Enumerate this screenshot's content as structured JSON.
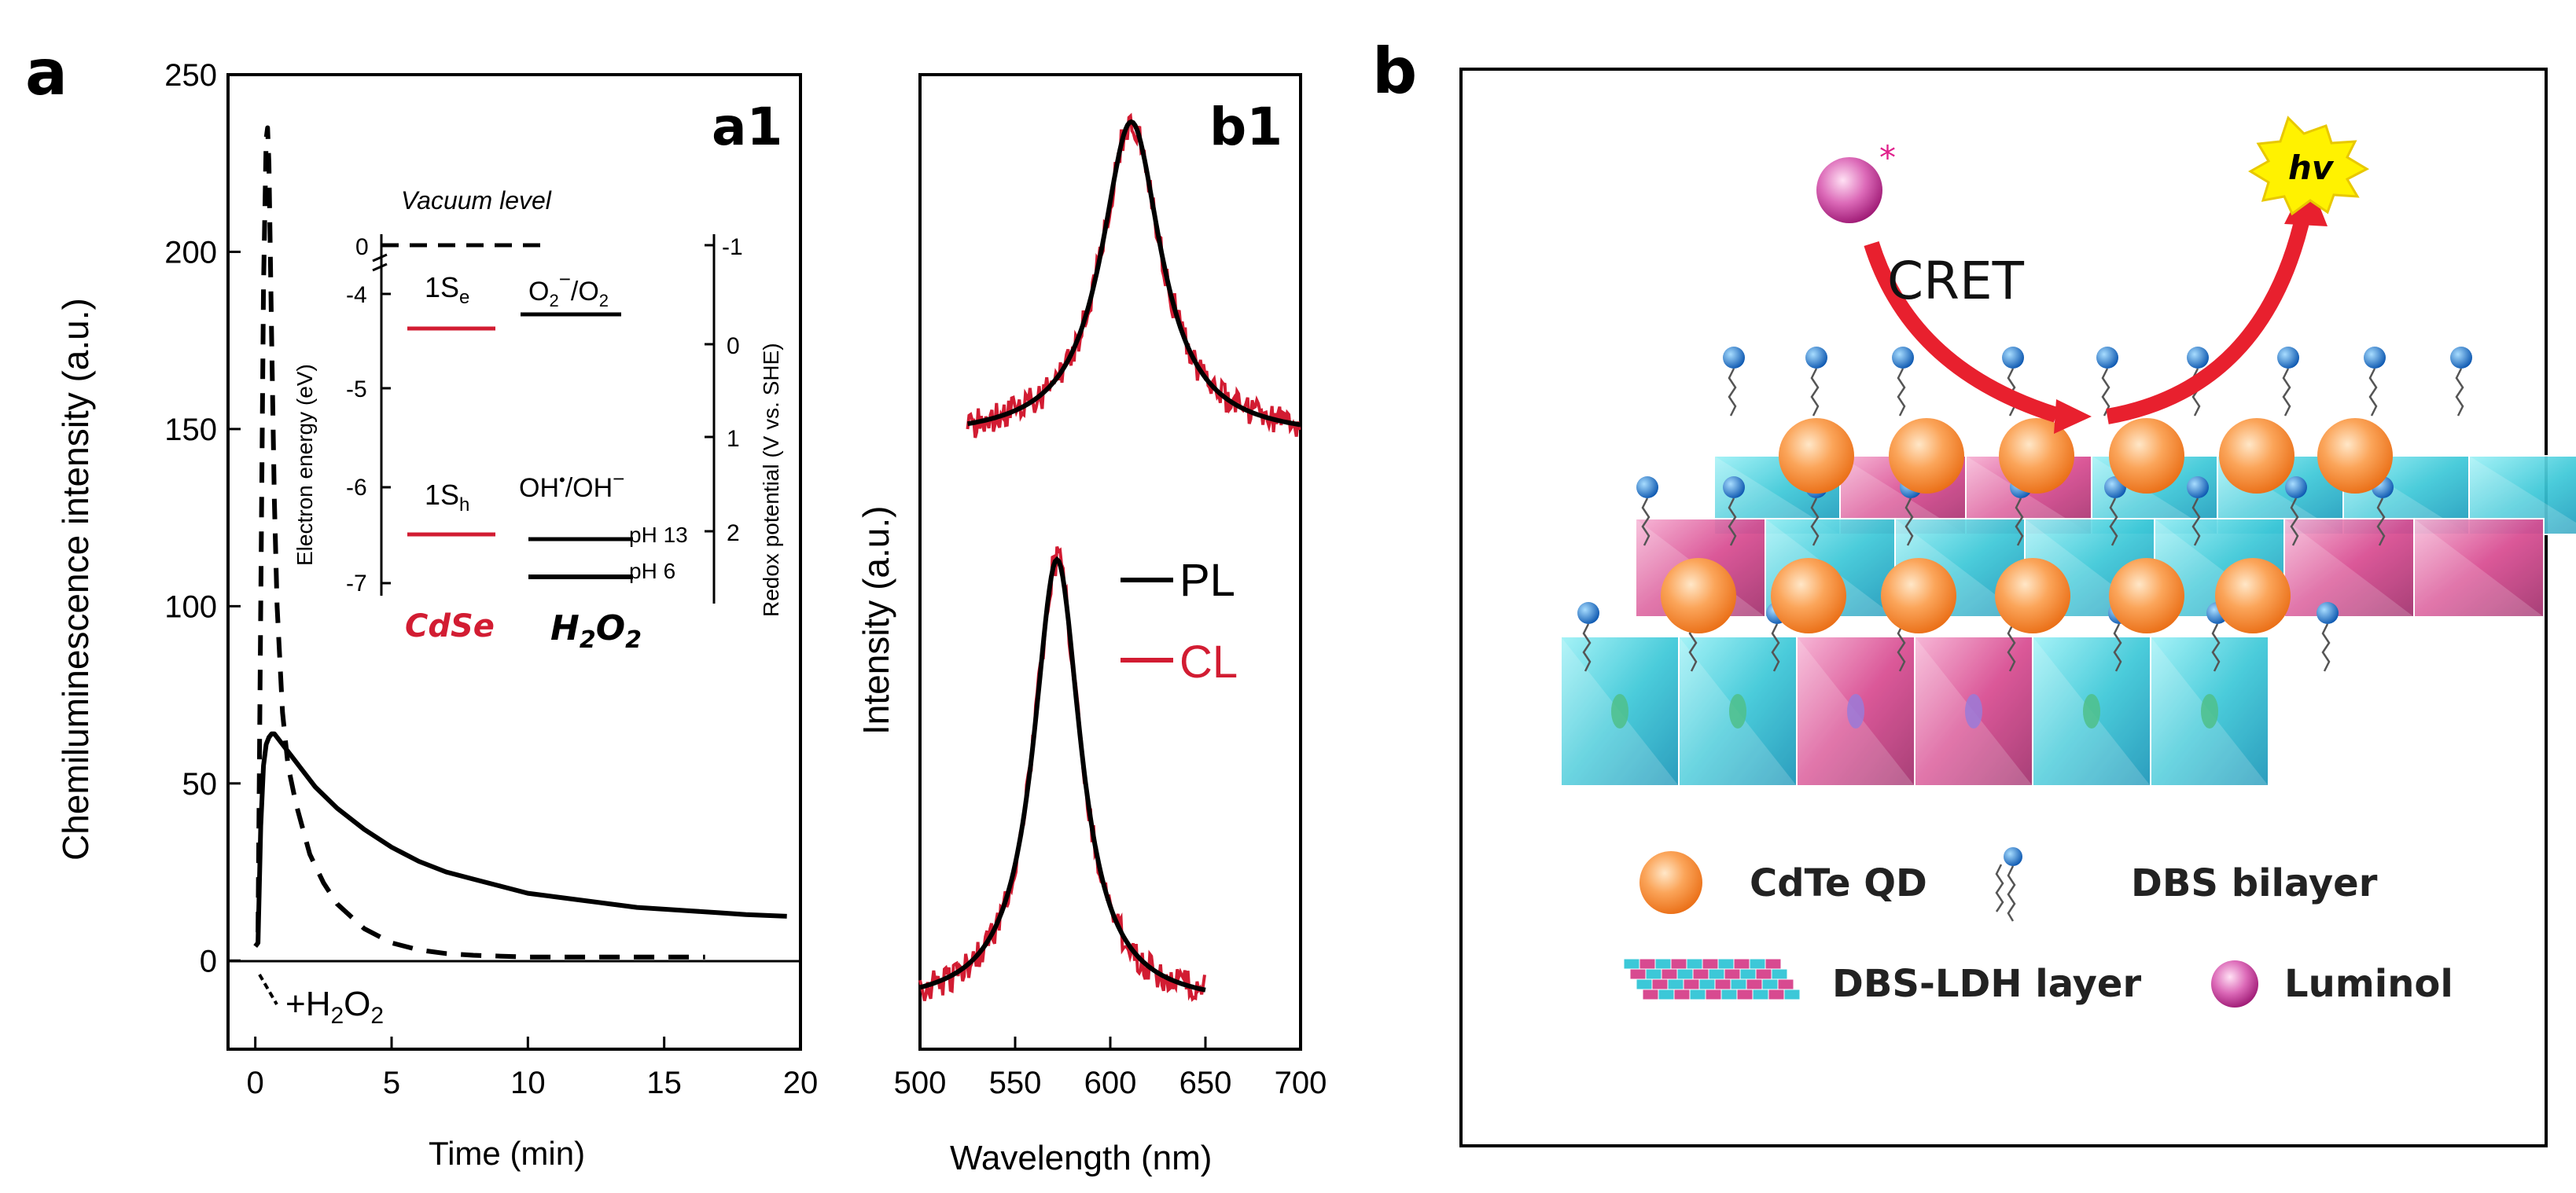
{
  "colors": {
    "red": "#d21c32",
    "black": "#000000",
    "cyan": "#3cc8d8",
    "magenta": "#d84a90",
    "qd_orange": "#f58a2a",
    "luminol_purple": "#c0208a",
    "hv_yellow": "#fff200"
  },
  "panel_labels": {
    "a": "a",
    "b": "b",
    "a1": "a1",
    "b1": "b1"
  },
  "chart_data": [
    {
      "id": "a1",
      "type": "line",
      "xlabel": "Time (min)",
      "ylabel": "Chemiluminescence intensity (a.u.)",
      "xlim": [
        -1,
        20
      ],
      "ylim": [
        -25,
        250
      ],
      "xticks": [
        0,
        5,
        10,
        15,
        20
      ],
      "yticks": [
        0,
        50,
        100,
        150,
        200,
        250
      ],
      "annotation": "+H2O2",
      "series": [
        {
          "name": "solid",
          "style": "solid",
          "x": [
            0,
            0.1,
            0.2,
            0.3,
            0.4,
            0.5,
            0.6,
            0.7,
            0.8,
            1,
            1.3,
            1.7,
            2.2,
            3,
            4,
            5,
            6,
            7,
            8,
            9,
            10,
            11,
            12,
            13,
            14,
            15,
            16,
            17,
            18,
            19.5
          ],
          "y": [
            4,
            5,
            38,
            55,
            61,
            63,
            64,
            64,
            63,
            61,
            58,
            54,
            49,
            43,
            37,
            32,
            28,
            25,
            23,
            21,
            19,
            18,
            17,
            16,
            15,
            14.5,
            14,
            13.5,
            13,
            12.5
          ]
        },
        {
          "name": "dashed",
          "style": "dashed",
          "x": [
            0.1,
            0.2,
            0.3,
            0.4,
            0.45,
            0.5,
            0.6,
            0.7,
            0.8,
            1,
            1.2,
            1.5,
            2,
            2.5,
            3,
            4,
            5,
            6,
            7,
            8,
            10,
            12,
            14,
            16.5
          ],
          "y": [
            8,
            100,
            190,
            232,
            235,
            225,
            175,
            130,
            100,
            70,
            55,
            44,
            30,
            22,
            16,
            9,
            5,
            3,
            2,
            1.5,
            1,
            1,
            1,
            1
          ]
        }
      ],
      "inset": {
        "title": "Vacuum level",
        "left_axis_label": "Electron energy (eV)",
        "right_axis_label": "Redox potential (V vs. SHE)",
        "left_ticks": [
          "0",
          "-4",
          "-5",
          "-6",
          "-7"
        ],
        "right_ticks": [
          "-1",
          "0",
          "1",
          "2"
        ],
        "levels": {
          "cdse_e": "1S",
          "cdse_e_sub": "e",
          "cdse_h": "1S",
          "cdse_h_sub": "h",
          "o2_pair": "O",
          "o2_sub": "2",
          "o2_sup": "−",
          "o2_rest": "/O",
          "o2_rest_sub": "2",
          "oh_pair": "OH",
          "oh_sup1": "•",
          "oh_mid": "/OH",
          "oh_sup2": "−",
          "ph13": "pH 13",
          "ph6": "pH 6"
        },
        "cdse_label": "CdSe",
        "h2o2_label": "H",
        "h2o2_sub1": "2",
        "h2o2_o": "O",
        "h2o2_sub2": "2"
      }
    },
    {
      "id": "b1",
      "type": "line",
      "xlabel": "Wavelength (nm)",
      "ylabel": "Intensity (a.u.)",
      "xlim": [
        500,
        700
      ],
      "xticks": [
        500,
        550,
        600,
        650,
        700
      ],
      "legend": [
        {
          "name": "PL",
          "color": "#000000"
        },
        {
          "name": "CL",
          "color": "#d21c32"
        }
      ],
      "top_peak": {
        "center_nm": 611,
        "range_nm": [
          525,
          700
        ],
        "fwhm_nm": 38
      },
      "bottom_peak": {
        "center_nm": 572,
        "range_nm": [
          500,
          650
        ],
        "fwhm_nm": 30
      }
    }
  ],
  "schematic": {
    "cret_label": "CRET",
    "hv_label": "hv",
    "luminol_star": "*",
    "legend": {
      "qd": "CdTe QD",
      "dbs_bilayer": "DBS bilayer",
      "ldh_layer": "DBS-LDH layer",
      "luminol": "Luminol"
    }
  }
}
